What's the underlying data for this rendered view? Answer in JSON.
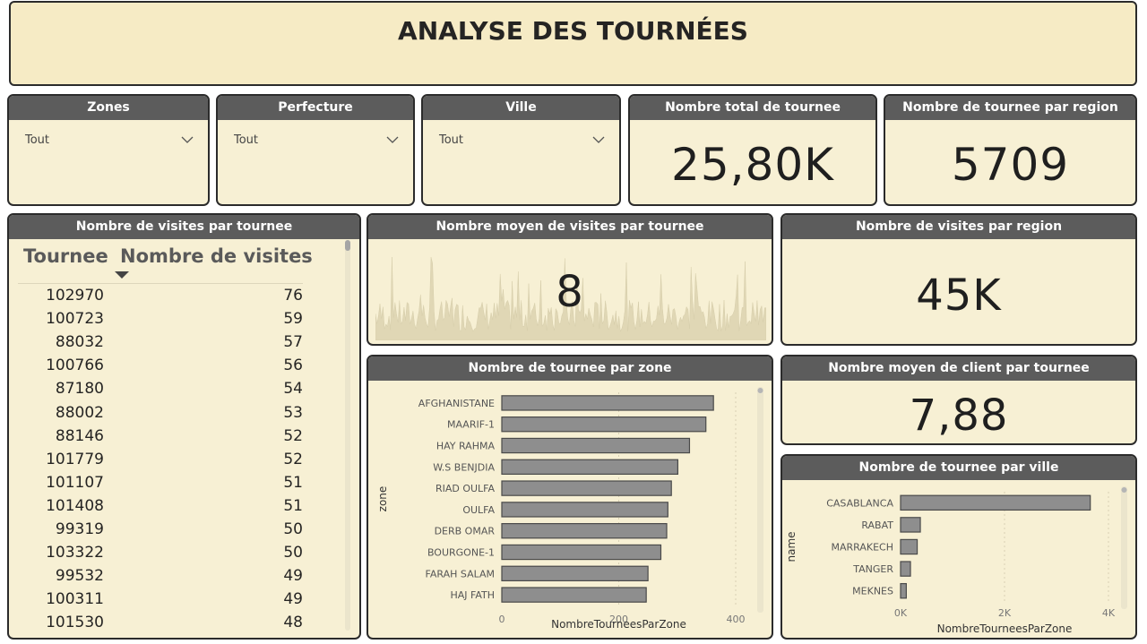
{
  "title": "ANALYSE DES TOURNÉES",
  "slicers": [
    {
      "label": "Zones",
      "value": "Tout"
    },
    {
      "label": "Perfecture",
      "value": "Tout"
    },
    {
      "label": "Ville",
      "value": "Tout"
    }
  ],
  "cards": {
    "total": {
      "label": "Nombre total de tournee",
      "value": "25,80K"
    },
    "region": {
      "label": "Nombre de tournee par region",
      "value": "5709"
    },
    "avg_visits": {
      "label": "Nombre moyen de visites par tournee",
      "value": "8"
    },
    "visits_region": {
      "label": "Nombre de visites par region",
      "value": "45K"
    },
    "avg_clients": {
      "label": "Nombre moyen de client par tournee",
      "value": "7,88"
    }
  },
  "table": {
    "title": "Nombre de visites par tournee",
    "headers": [
      "Tournee",
      "Nombre de visites"
    ],
    "rows": [
      [
        "102970",
        "76"
      ],
      [
        "100723",
        "59"
      ],
      [
        "88032",
        "57"
      ],
      [
        "100766",
        "56"
      ],
      [
        "87180",
        "54"
      ],
      [
        "88002",
        "53"
      ],
      [
        "88146",
        "52"
      ],
      [
        "101779",
        "52"
      ],
      [
        "101107",
        "51"
      ],
      [
        "101408",
        "51"
      ],
      [
        "99319",
        "50"
      ],
      [
        "103322",
        "50"
      ],
      [
        "99532",
        "49"
      ],
      [
        "100311",
        "49"
      ],
      [
        "101530",
        "48"
      ]
    ]
  },
  "chart_data": [
    {
      "type": "bar",
      "title": "Nombre de tournee par zone",
      "orientation": "horizontal",
      "categories": [
        "AFGHANISTANE",
        "MAARIF-1",
        "HAY RAHMA",
        "W.S BENJDIA",
        "RIAD OULFA",
        "OULFA",
        "DERB OMAR",
        "BOURGONE-1",
        "FARAH SALAM",
        "HAJ FATH"
      ],
      "values": [
        362,
        349,
        321,
        301,
        290,
        284,
        282,
        272,
        250,
        247
      ],
      "xlabel": "NombreTourneesParZone",
      "ylabel": "zone",
      "xlim": [
        0,
        400
      ],
      "xticks": [
        "0",
        "200",
        "400"
      ],
      "grid": true,
      "color": "#8e8e8e"
    },
    {
      "type": "bar",
      "title": "Nombre de tournee par ville",
      "orientation": "horizontal",
      "categories": [
        "CASABLANCA",
        "RABAT",
        "MARRAKECH",
        "TANGER",
        "MEKNES"
      ],
      "values": [
        3650,
        380,
        320,
        190,
        110
      ],
      "xlabel": "NombreTourneesParZone",
      "ylabel": "name",
      "xlim": [
        0,
        4000
      ],
      "xticks": [
        "0K",
        "2K",
        "4K"
      ],
      "grid": true,
      "color": "#8e8e8e"
    }
  ]
}
